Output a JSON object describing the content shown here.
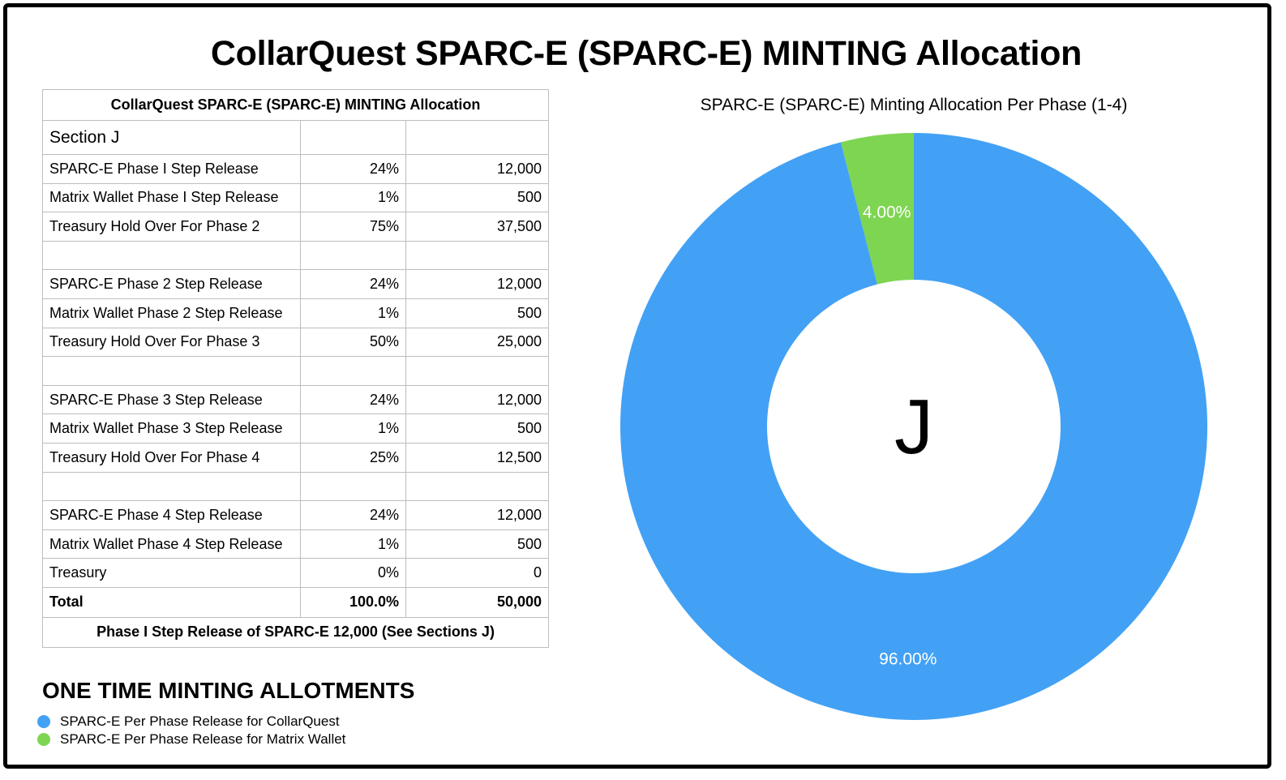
{
  "title": "CollarQuest SPARC-E (SPARC-E) MINTING Allocation",
  "table": {
    "header": "CollarQuest SPARC-E (SPARC-E) MINTING Allocation",
    "section": "Section J",
    "rows": [
      {
        "label": "SPARC-E Phase I Step Release",
        "pct": "24%",
        "amount": "12,000"
      },
      {
        "label": "Matrix Wallet Phase I Step Release",
        "pct": "1%",
        "amount": "500"
      },
      {
        "label": "Treasury Hold Over For Phase 2",
        "pct": "75%",
        "amount": "37,500"
      },
      {
        "label": "",
        "pct": "",
        "amount": ""
      },
      {
        "label": "SPARC-E Phase 2 Step Release",
        "pct": "24%",
        "amount": "12,000"
      },
      {
        "label": "Matrix Wallet Phase 2 Step Release",
        "pct": "1%",
        "amount": "500"
      },
      {
        "label": "Treasury Hold Over For Phase 3",
        "pct": "50%",
        "amount": "25,000"
      },
      {
        "label": "",
        "pct": "",
        "amount": ""
      },
      {
        "label": "SPARC-E Phase 3 Step Release",
        "pct": "24%",
        "amount": "12,000"
      },
      {
        "label": "Matrix Wallet Phase 3 Step Release",
        "pct": "1%",
        "amount": "500"
      },
      {
        "label": "Treasury Hold Over For Phase 4",
        "pct": "25%",
        "amount": "12,500"
      },
      {
        "label": "",
        "pct": "",
        "amount": ""
      },
      {
        "label": "SPARC-E Phase 4 Step Release",
        "pct": "24%",
        "amount": "12,000"
      },
      {
        "label": "Matrix Wallet Phase 4 Step Release",
        "pct": "1%",
        "amount": "500"
      },
      {
        "label": "Treasury",
        "pct": "0%",
        "amount": "0"
      }
    ],
    "total": {
      "label": "Total",
      "pct": "100.0%",
      "amount": "50,000"
    },
    "footer": "Phase I Step Release of SPARC-E 12,000 (See Sections J)"
  },
  "allotments_title": "ONE TIME MINTING ALLOTMENTS",
  "chart_data": {
    "type": "pie",
    "title": "SPARC-E (SPARC-E) Minting Allocation Per Phase (1-4)",
    "center_label": "J",
    "slices": [
      {
        "name": "SPARC-E Per Phase Release for CollarQuest",
        "value": 96.0,
        "label": "96.00%",
        "color": "#42a1f5"
      },
      {
        "name": "SPARC-E Per Phase Release for Matrix Wallet",
        "value": 4.0,
        "label": "4.00%",
        "color": "#7ed552"
      }
    ],
    "legend_position": "bottom-left"
  }
}
